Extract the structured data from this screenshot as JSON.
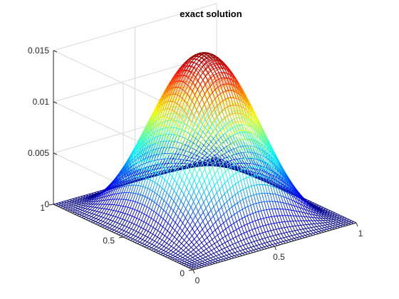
{
  "chart_data": {
    "type": "surface",
    "title": "exact solution",
    "function": "16*x^2*(1-x)^2*y^2*(1-y)^2 scaled so peak = 0.0156",
    "peak_value": 0.0156,
    "x_range": [
      0,
      1
    ],
    "y_range": [
      0,
      1
    ],
    "zlim": [
      0,
      0.015
    ],
    "grid_points_per_side": 61,
    "grid": true,
    "colormap": "jet",
    "x_ticks": [
      "0",
      "0.5",
      "1"
    ],
    "y_ticks": [
      "0",
      "0.5",
      "1"
    ],
    "z_ticks": [
      "0",
      "0.005",
      "0.01",
      "0.015"
    ],
    "sample_values": [
      {
        "x": 0.5,
        "y": 0.5,
        "z": 0.0156
      },
      {
        "x": 0.25,
        "y": 0.5,
        "z": 0.0088
      },
      {
        "x": 0.25,
        "y": 0.25,
        "z": 0.0049
      },
      {
        "x": 0.0,
        "y": 0.5,
        "z": 0.0
      }
    ]
  },
  "colors": {
    "axis_line": "#262626",
    "grid_line": "#d9d9d9",
    "background": "#ffffff"
  }
}
